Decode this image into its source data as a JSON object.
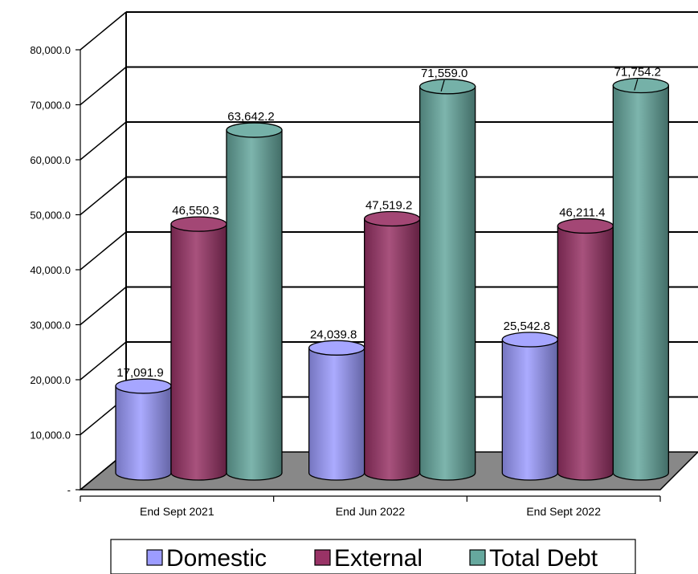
{
  "chart_data": {
    "type": "bar",
    "title": "",
    "xlabel": "",
    "ylabel": "",
    "categories": [
      "End Sept 2021",
      "End Jun 2022",
      "End Sept 2022"
    ],
    "series": [
      {
        "name": "Domestic",
        "values": [
          17091.9,
          24039.8,
          25542.8
        ],
        "labels": [
          "17,091.9",
          "24,039.8",
          "25,542.8"
        ],
        "color": "#9c9cff"
      },
      {
        "name": "External",
        "values": [
          46550.3,
          47519.2,
          46211.4
        ],
        "labels": [
          "46,550.3",
          "47,519.2",
          "46,211.4"
        ],
        "color": "#993366"
      },
      {
        "name": "Total Debt",
        "values": [
          63642.2,
          71559.0,
          71754.2
        ],
        "labels": [
          "63,642.2",
          "71,559.0",
          "71,754.2"
        ],
        "color": "#66a89e"
      }
    ],
    "ylim": [
      0,
      80000
    ],
    "y_ticks": [
      {
        "value": 0,
        "label": "-"
      },
      {
        "value": 10000,
        "label": "10,000.0"
      },
      {
        "value": 20000,
        "label": "20,000.0"
      },
      {
        "value": 30000,
        "label": "30,000.0"
      },
      {
        "value": 40000,
        "label": "40,000.0"
      },
      {
        "value": 50000,
        "label": "50,000.0"
      },
      {
        "value": 60000,
        "label": "60,000.0"
      },
      {
        "value": 70000,
        "label": "70,000.0"
      },
      {
        "value": 80000,
        "label": "80,000.0"
      }
    ],
    "grid": true,
    "legend": "bottom",
    "floor_color": "#888888"
  }
}
